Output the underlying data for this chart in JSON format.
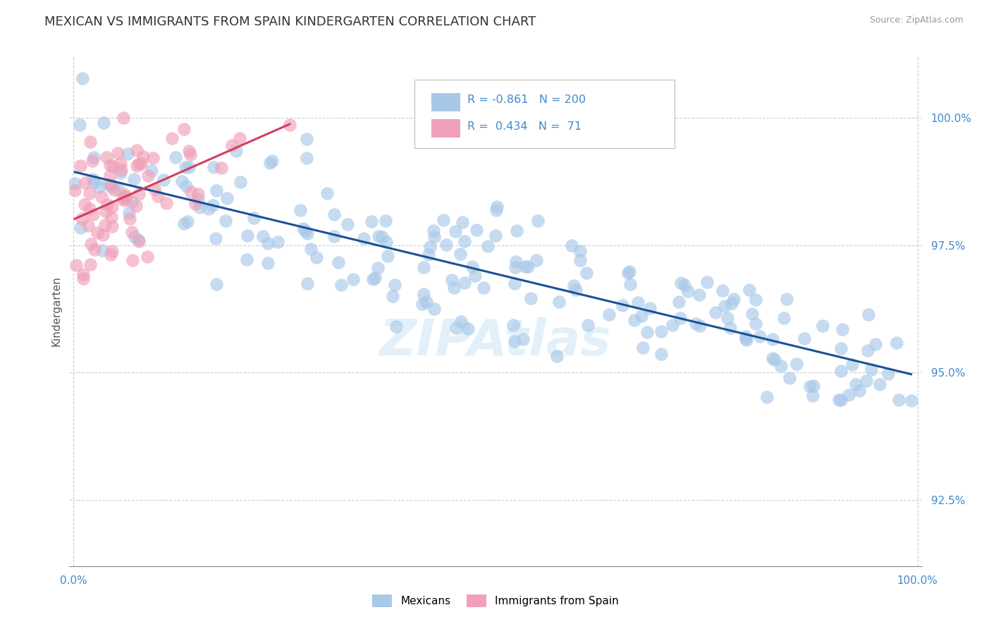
{
  "title": "MEXICAN VS IMMIGRANTS FROM SPAIN KINDERGARTEN CORRELATION CHART",
  "source_text": "Source: ZipAtlas.com",
  "ylabel": "Kindergarten",
  "y_ticks": [
    92.5,
    95.0,
    97.5,
    100.0
  ],
  "y_tick_labels": [
    "92.5%",
    "95.0%",
    "97.5%",
    "100.0%"
  ],
  "x_min": 0.0,
  "x_max": 1.0,
  "y_min": 91.2,
  "y_max": 101.2,
  "blue_R": -0.861,
  "blue_N": 200,
  "pink_R": 0.434,
  "pink_N": 71,
  "blue_color": "#a8c8e8",
  "pink_color": "#f0a0b8",
  "blue_line_color": "#1a5296",
  "pink_line_color": "#d04060",
  "legend_label_blue": "Mexicans",
  "legend_label_pink": "Immigrants from Spain",
  "title_fontsize": 13,
  "watermark_text": "ZIPAtlas",
  "background_color": "#ffffff",
  "grid_color": "#cccccc",
  "axis_color": "#4488cc",
  "tick_color": "#888888"
}
